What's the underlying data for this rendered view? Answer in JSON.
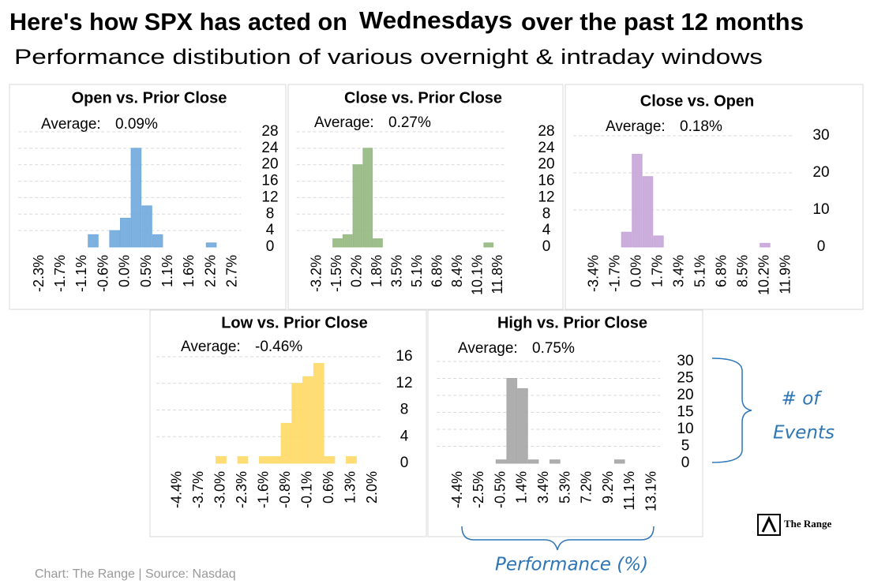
{
  "title": "Here's how SPX has acted on",
  "title_highlight": "Wednesdays",
  "title_end": "over the past 12 months",
  "subtitle": "Performance distibution of various overnight & intraday windows",
  "source": "Chart: The Range | Source: Nasdaq",
  "logo": "The Range",
  "annotations": {
    "y_axis": [
      "# of",
      "Events"
    ],
    "x_axis": "Performance (%)"
  },
  "chart_data": [
    {
      "type": "bar",
      "title": "Open vs. Prior Close",
      "average_label": "Average:",
      "average": "0.09%",
      "categories": [
        "-2.3%",
        null,
        "-1.7%",
        null,
        "-1.1%",
        null,
        "-0.6%",
        null,
        "0.0%",
        null,
        "0.5%",
        null,
        "1.1%",
        null,
        "1.6%",
        null,
        "2.2%",
        null,
        "2.7%",
        null
      ],
      "values": [
        0,
        0,
        0,
        0,
        0,
        3,
        0,
        4,
        7,
        24,
        10,
        3,
        0,
        0,
        0,
        0,
        1,
        0,
        0,
        0
      ],
      "color": "#6fa8dc",
      "ylim": [
        0,
        28
      ],
      "yticks": [
        0,
        4,
        8,
        12,
        16,
        20,
        24,
        28
      ],
      "grid": true
    },
    {
      "type": "bar",
      "title": "Close vs. Prior Close",
      "average_label": "Average:",
      "average": "0.27%",
      "categories": [
        "-3.2%",
        null,
        "-1.5%",
        null,
        "0.2%",
        null,
        "1.8%",
        null,
        "3.5%",
        null,
        "5.1%",
        null,
        "6.8%",
        null,
        "8.4%",
        null,
        "10.1%",
        null,
        "11.8%",
        null
      ],
      "values": [
        0,
        0,
        2,
        3,
        20,
        24,
        2,
        0,
        0,
        0,
        0,
        0,
        0,
        0,
        0,
        0,
        0,
        1,
        0,
        0
      ],
      "color": "#93b77f",
      "ylim": [
        0,
        28
      ],
      "yticks": [
        0,
        4,
        8,
        12,
        16,
        20,
        24,
        28
      ],
      "grid": true
    },
    {
      "type": "bar",
      "title": "Close vs. Open",
      "average_label": "Average:",
      "average": "0.18%",
      "categories": [
        "-3.4%",
        null,
        "-1.7%",
        null,
        "0.0%",
        null,
        "1.7%",
        null,
        "3.4%",
        null,
        "5.1%",
        null,
        "6.8%",
        null,
        "8.5%",
        null,
        "10.2%",
        null,
        "11.9%",
        null
      ],
      "values": [
        0,
        0,
        0,
        4,
        25,
        19,
        3,
        0,
        0,
        0,
        0,
        0,
        0,
        0,
        0,
        0,
        1,
        0,
        0,
        0
      ],
      "color": "#c5a5d8",
      "ylim": [
        0,
        30
      ],
      "yticks": [
        0,
        10,
        20,
        30
      ],
      "grid": true
    },
    {
      "type": "bar",
      "title": "Low vs. Prior Close",
      "average_label": "Average:",
      "average": "-0.46%",
      "categories": [
        "-4.4%",
        null,
        "-3.7%",
        null,
        "-3.0%",
        null,
        "-2.3%",
        null,
        "-1.6%",
        null,
        "-0.8%",
        null,
        "-0.1%",
        null,
        "0.6%",
        null,
        "1.3%",
        null,
        "2.0%",
        null
      ],
      "values": [
        0,
        0,
        0,
        0,
        1,
        0,
        1,
        0,
        1,
        1,
        6,
        12,
        13,
        15,
        1,
        0,
        1,
        0,
        0,
        0
      ],
      "color": "#ffd966",
      "ylim": [
        0,
        16
      ],
      "yticks": [
        0,
        4,
        8,
        12,
        16
      ],
      "grid": true
    },
    {
      "type": "bar",
      "title": "High vs. Prior Close",
      "average_label": "Average:",
      "average": "0.75%",
      "categories": [
        "-4.4%",
        null,
        "-2.5%",
        null,
        "-0.5%",
        null,
        "1.4%",
        null,
        "3.4%",
        null,
        "5.3%",
        null,
        "7.2%",
        null,
        "9.2%",
        null,
        "11.1%",
        null,
        "13.1%",
        null
      ],
      "values": [
        0,
        0,
        0,
        0,
        1,
        25,
        22,
        1,
        0,
        1,
        0,
        0,
        0,
        0,
        0,
        1,
        0,
        0,
        0,
        0
      ],
      "color": "#a5a5a5",
      "ylim": [
        0,
        30
      ],
      "yticks": [
        0,
        5,
        10,
        15,
        20,
        25,
        30
      ],
      "grid": true
    }
  ]
}
